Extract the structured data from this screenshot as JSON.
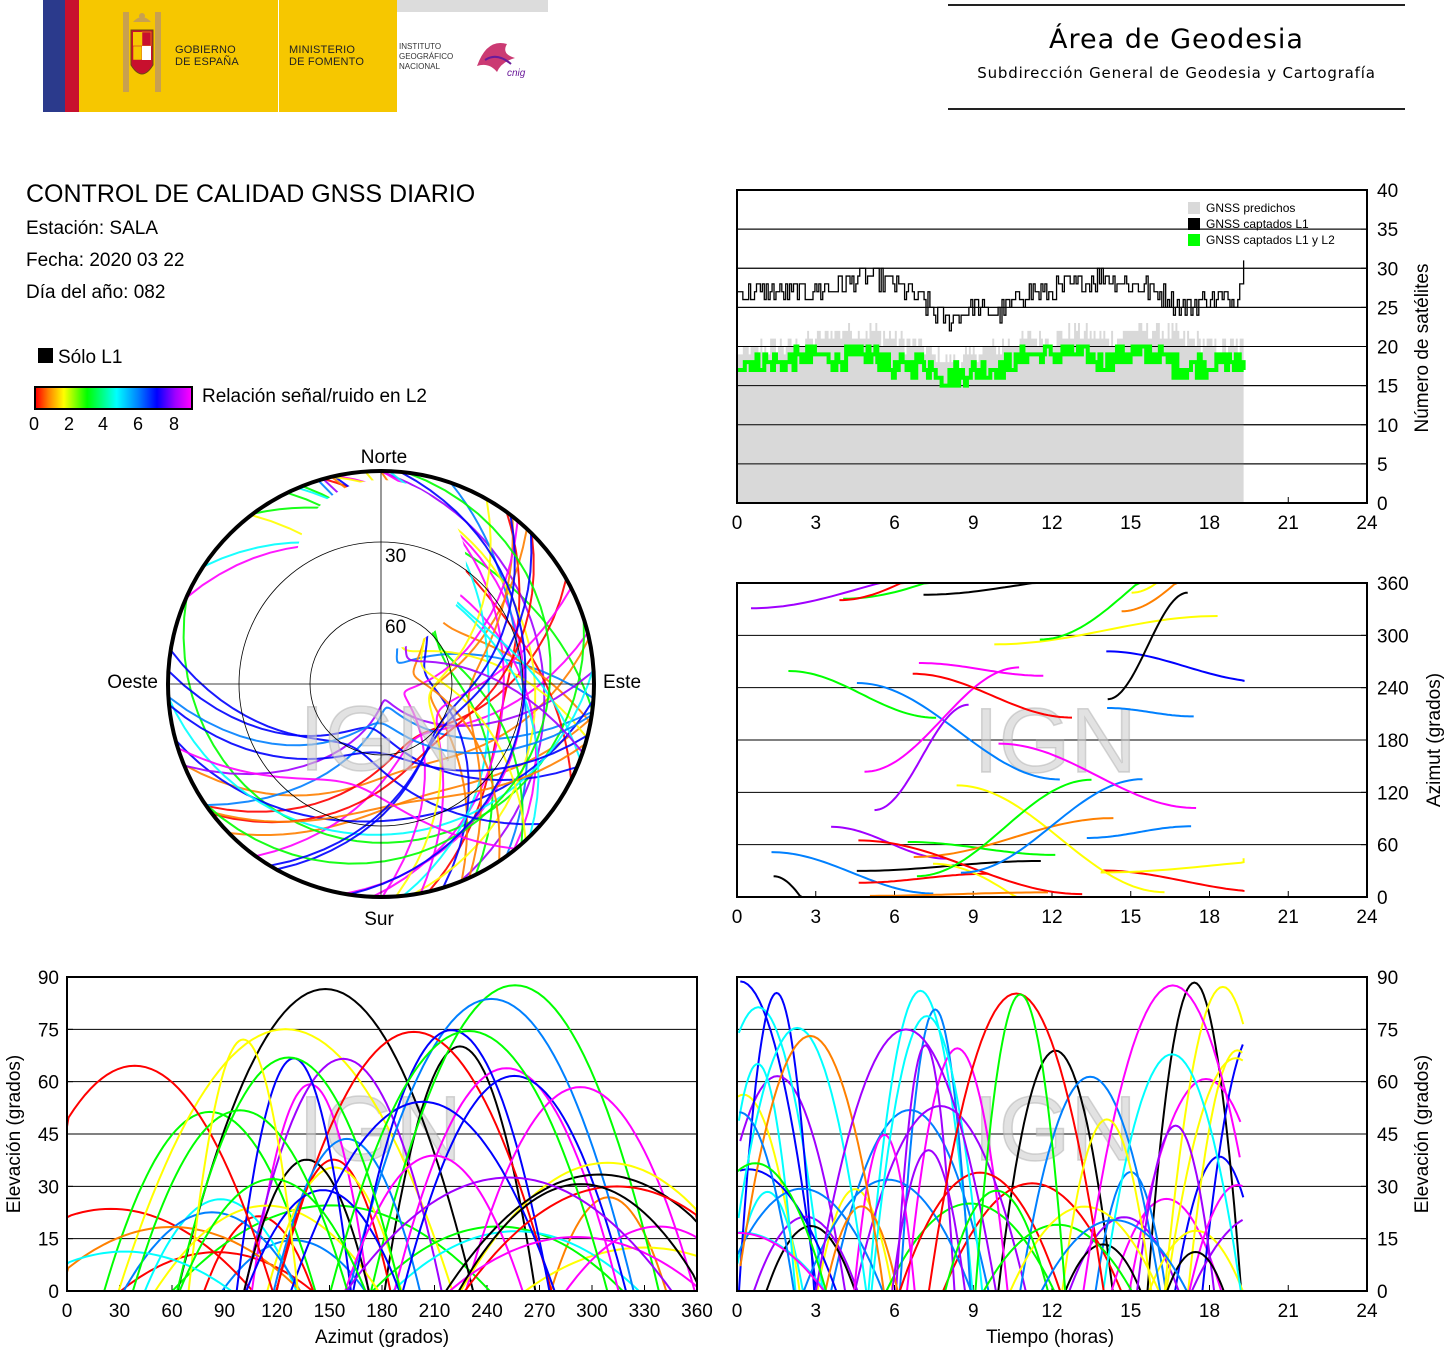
{
  "header": {
    "gov_line1": "GOBIERNO",
    "gov_line2": "DE ESPAÑA",
    "min_line1": "MINISTERIO",
    "min_line2": "DE FOMENTO",
    "ign_line1": "INSTITUTO",
    "ign_line2": "GEOGRÁFICO",
    "ign_line3": "NACIONAL",
    "cnig": "cnig",
    "area_title": "Área de Geodesia",
    "area_subtitle": "Subdirección General de Geodesia y Cartografía"
  },
  "info": {
    "title": "CONTROL DE CALIDAD GNSS DIARIO",
    "station": "Estación: SALA",
    "date": "Fecha: 2020 03 22",
    "doy": "Día del año: 082"
  },
  "legend": {
    "l1_only": "Sólo L1",
    "snr_label": "Relación señal/ruido en L2",
    "snr_ticks": [
      "0",
      "2",
      "4",
      "6",
      "8"
    ]
  },
  "colors": {
    "predicted": "#d9d9d9",
    "l1": "#000000",
    "l1l2": "#00ff00",
    "snr_scale": [
      "#ff0000",
      "#ff8000",
      "#ffff00",
      "#00ff00",
      "#00ffff",
      "#0080ff",
      "#0000ff",
      "#a000ff",
      "#ff00ff"
    ]
  },
  "watermark": "IGN",
  "chart_data": [
    {
      "type": "area",
      "id": "satellites",
      "ylabel": "Número de satélites",
      "xlim": [
        0,
        24
      ],
      "ylim": [
        0,
        40
      ],
      "xticks": [
        "0",
        "3",
        "6",
        "9",
        "12",
        "15",
        "18",
        "21",
        "24"
      ],
      "yticks": [
        "0",
        "5",
        "10",
        "15",
        "20",
        "25",
        "30",
        "35",
        "40"
      ],
      "grid": true,
      "legend": [
        "GNSS predichos",
        "GNSS captados L1",
        "GNSS captados L1 y L2"
      ],
      "series": [
        {
          "name": "GNSS predichos",
          "x": [
            0,
            1,
            2,
            3,
            4,
            5,
            6,
            7,
            8,
            9,
            10,
            11,
            12,
            13,
            14,
            15,
            16,
            17,
            18,
            19,
            19.3
          ],
          "values": [
            19,
            20,
            20,
            21,
            22,
            22,
            21,
            20,
            18,
            19,
            20,
            21,
            21,
            22,
            21,
            22,
            22,
            21,
            20,
            20,
            20
          ]
        },
        {
          "name": "GNSS captados L1",
          "x": [
            0,
            1,
            2,
            3,
            4,
            5,
            6,
            7,
            8,
            9,
            10,
            11,
            12,
            13,
            14,
            15,
            16,
            17,
            18,
            19,
            19.3
          ],
          "values": [
            27,
            27,
            27,
            27,
            28,
            29,
            28,
            26,
            23,
            25,
            24,
            27,
            27,
            28,
            29,
            28,
            27,
            25,
            26,
            26,
            30
          ]
        },
        {
          "name": "GNSS captados L1 y L2",
          "x": [
            0,
            1,
            2,
            3,
            4,
            5,
            6,
            7,
            8,
            9,
            10,
            11,
            12,
            13,
            14,
            15,
            16,
            17,
            18,
            19,
            19.3
          ],
          "values": [
            18,
            18,
            18,
            19,
            18,
            19,
            17,
            18,
            16,
            17,
            17,
            19,
            19,
            19,
            18,
            19,
            19,
            17,
            18,
            18,
            18
          ]
        }
      ]
    },
    {
      "type": "scatter",
      "id": "skyplot",
      "labels": {
        "north": "Norte",
        "south": "Sur",
        "east": "Este",
        "west": "Oeste"
      },
      "rings": [
        "30",
        "60"
      ]
    },
    {
      "type": "scatter",
      "id": "azimuth_time",
      "ylabel": "Azimut (grados)",
      "xlim": [
        0,
        24
      ],
      "ylim": [
        0,
        360
      ],
      "xticks": [
        "0",
        "3",
        "6",
        "9",
        "12",
        "15",
        "18",
        "21",
        "24"
      ],
      "yticks": [
        "0",
        "60",
        "120",
        "180",
        "240",
        "300",
        "360"
      ],
      "grid": true
    },
    {
      "type": "scatter",
      "id": "elevation_azimuth",
      "xlabel": "Azimut (grados)",
      "ylabel": "Elevación (grados)",
      "xlim": [
        0,
        360
      ],
      "ylim": [
        0,
        90
      ],
      "xticks": [
        "0",
        "30",
        "60",
        "90",
        "120",
        "150",
        "180",
        "210",
        "240",
        "270",
        "300",
        "330",
        "360"
      ],
      "yticks": [
        "0",
        "15",
        "30",
        "45",
        "60",
        "75",
        "90"
      ],
      "grid": true
    },
    {
      "type": "scatter",
      "id": "elevation_time",
      "xlabel": "Tiempo (horas)",
      "ylabel": "Elevación (grados)",
      "xlim": [
        0,
        24
      ],
      "ylim": [
        0,
        90
      ],
      "xticks": [
        "0",
        "3",
        "6",
        "9",
        "12",
        "15",
        "18",
        "21",
        "24"
      ],
      "yticks": [
        "0",
        "15",
        "30",
        "45",
        "60",
        "75",
        "90"
      ],
      "grid": true
    }
  ]
}
